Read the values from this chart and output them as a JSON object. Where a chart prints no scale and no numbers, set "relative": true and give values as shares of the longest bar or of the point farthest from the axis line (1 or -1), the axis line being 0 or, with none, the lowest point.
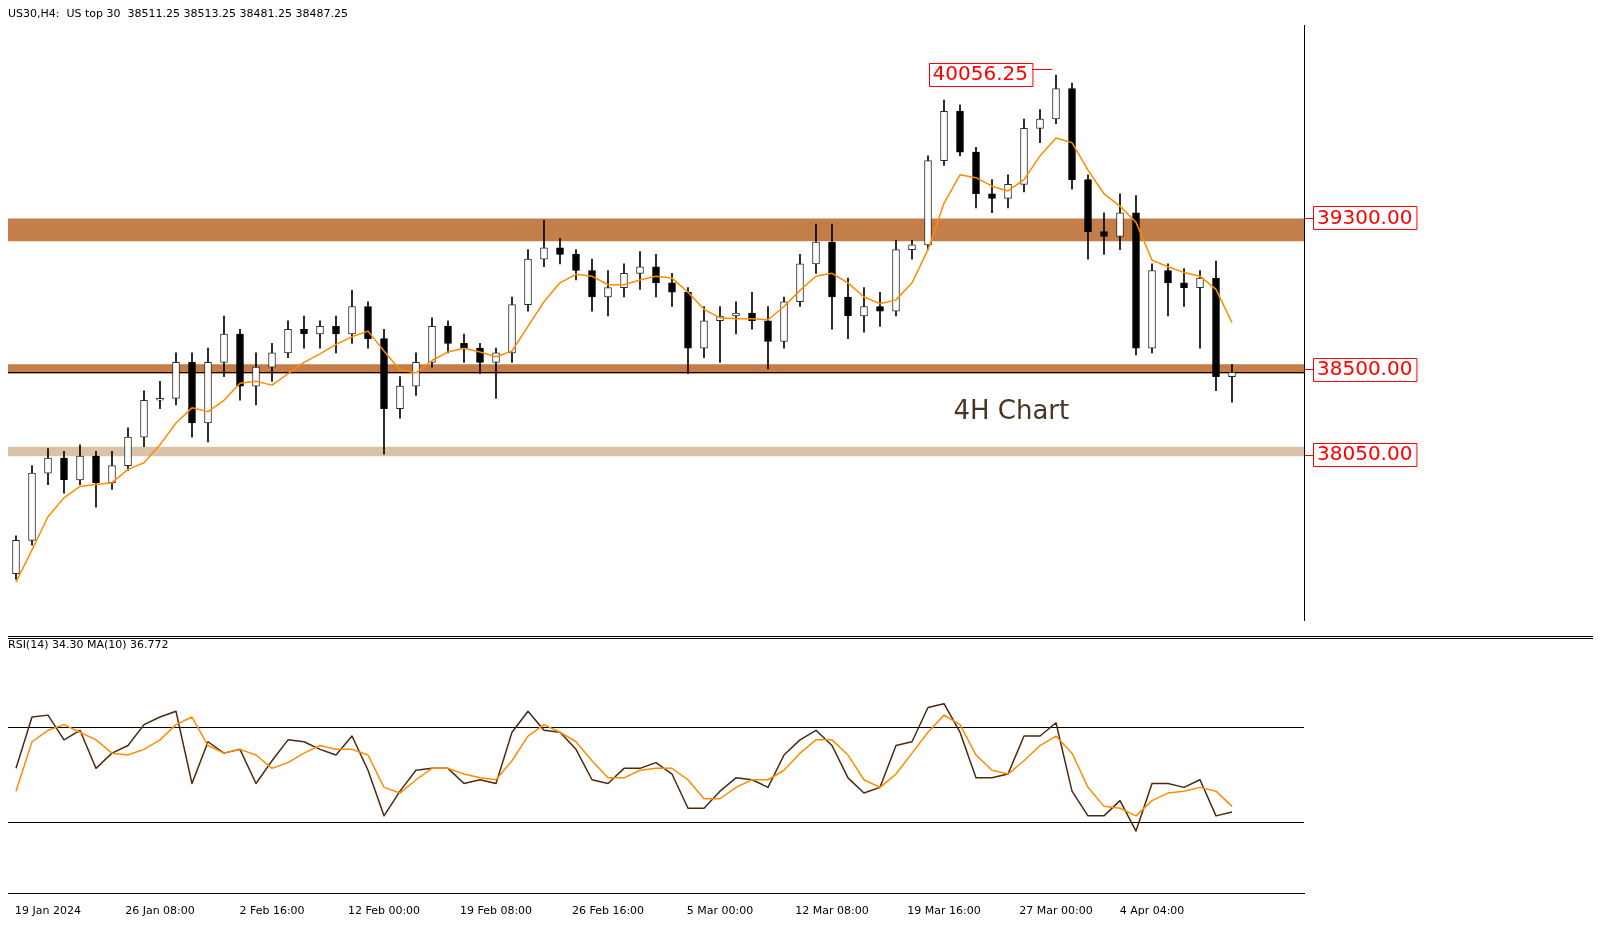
{
  "chart_data": [
    {
      "type": "candlestick",
      "title": "US30,H4:  US top 30  38511.25 38513.25 38481.25 38487.25",
      "categories": [
        null,
        null,
        null,
        null,
        null,
        null,
        null,
        null,
        null,
        null,
        null,
        null,
        null,
        null,
        null,
        null,
        null,
        null,
        null,
        null,
        null,
        null,
        null,
        null,
        null,
        null,
        null,
        null,
        null,
        null,
        null,
        null,
        null,
        null,
        null,
        null,
        null,
        null,
        null,
        null,
        null,
        null,
        null,
        null,
        null,
        null,
        null,
        null,
        null,
        null,
        null,
        null,
        null,
        null,
        null,
        null,
        null,
        null,
        null,
        null,
        null,
        null,
        null,
        null,
        null,
        null,
        null,
        null,
        null,
        null,
        null,
        null,
        null,
        null,
        null,
        null,
        null,
        null,
        null,
        null,
        null
      ],
      "ohlc": [
        [
          37425,
          37625,
          37395,
          37600
        ],
        [
          37600,
          37995,
          37575,
          37955
        ],
        [
          37955,
          38085,
          37895,
          38035
        ],
        [
          38035,
          38070,
          37850,
          37920
        ],
        [
          37920,
          38105,
          37895,
          38045
        ],
        [
          38045,
          38070,
          37775,
          37905
        ],
        [
          37905,
          38070,
          37870,
          37995
        ],
        [
          37995,
          38195,
          37970,
          38145
        ],
        [
          38145,
          38390,
          38095,
          38340
        ],
        [
          38340,
          38440,
          38295,
          38350
        ],
        [
          38350,
          38590,
          38315,
          38540
        ],
        [
          38540,
          38590,
          38145,
          38220
        ],
        [
          38220,
          38615,
          38120,
          38540
        ],
        [
          38540,
          38785,
          38465,
          38690
        ],
        [
          38690,
          38715,
          38340,
          38415
        ],
        [
          38415,
          38590,
          38315,
          38515
        ],
        [
          38515,
          38640,
          38440,
          38590
        ],
        [
          38590,
          38760,
          38565,
          38715
        ],
        [
          38715,
          38785,
          38615,
          38690
        ],
        [
          38690,
          38760,
          38615,
          38730
        ],
        [
          38730,
          38785,
          38590,
          38690
        ],
        [
          38690,
          38920,
          38640,
          38835
        ],
        [
          38835,
          38860,
          38615,
          38665
        ],
        [
          38665,
          38715,
          38055,
          38295
        ],
        [
          38295,
          38465,
          38245,
          38415
        ],
        [
          38415,
          38590,
          38365,
          38540
        ],
        [
          38540,
          38775,
          38515,
          38730
        ],
        [
          38730,
          38760,
          38590,
          38640
        ],
        [
          38640,
          38690,
          38540,
          38615
        ],
        [
          38615,
          38640,
          38480,
          38540
        ],
        [
          38540,
          38615,
          38350,
          38590
        ],
        [
          38590,
          38885,
          38540,
          38845
        ],
        [
          38845,
          39135,
          38810,
          39085
        ],
        [
          39085,
          39290,
          39045,
          39145
        ],
        [
          39145,
          39195,
          39060,
          39110
        ],
        [
          39110,
          39135,
          38975,
          39025
        ],
        [
          39025,
          39085,
          38810,
          38885
        ],
        [
          38885,
          39025,
          38785,
          38935
        ],
        [
          38935,
          39060,
          38885,
          39010
        ],
        [
          39010,
          39125,
          38925,
          39045
        ],
        [
          39045,
          39110,
          38885,
          38960
        ],
        [
          38960,
          39010,
          38835,
          38910
        ],
        [
          38910,
          38935,
          38480,
          38615
        ],
        [
          38615,
          38835,
          38565,
          38760
        ],
        [
          38760,
          38835,
          38540,
          38785
        ],
        [
          38785,
          38860,
          38690,
          38800
        ],
        [
          38800,
          38910,
          38715,
          38760
        ],
        [
          38760,
          38835,
          38505,
          38650
        ],
        [
          38650,
          38885,
          38615,
          38860
        ],
        [
          38860,
          39110,
          38835,
          39060
        ],
        [
          39060,
          39270,
          39010,
          39175
        ],
        [
          39175,
          39270,
          38715,
          38885
        ],
        [
          38885,
          38985,
          38665,
          38785
        ],
        [
          38785,
          38935,
          38700,
          38835
        ],
        [
          38835,
          38910,
          38730,
          38810
        ],
        [
          38810,
          39185,
          38785,
          39135
        ],
        [
          39135,
          39185,
          39085,
          39160
        ],
        [
          39160,
          39630,
          39135,
          39605
        ],
        [
          39605,
          39925,
          39580,
          39865
        ],
        [
          39865,
          39900,
          39630,
          39650
        ],
        [
          39650,
          39675,
          39355,
          39430
        ],
        [
          39430,
          39505,
          39330,
          39405
        ],
        [
          39405,
          39530,
          39355,
          39480
        ],
        [
          39480,
          39825,
          39440,
          39775
        ],
        [
          39775,
          39875,
          39700,
          39825
        ],
        [
          39825,
          40056.25,
          39800,
          39985
        ],
        [
          39985,
          40015,
          39455,
          39505
        ],
        [
          39505,
          39530,
          39085,
          39230
        ],
        [
          39230,
          39330,
          39110,
          39205
        ],
        [
          39205,
          39430,
          39135,
          39330
        ],
        [
          39330,
          39420,
          38580,
          38615
        ],
        [
          38615,
          39060,
          38590,
          39025
        ],
        [
          39025,
          39060,
          38785,
          38960
        ],
        [
          38960,
          39035,
          38835,
          38935
        ],
        [
          38935,
          39025,
          38615,
          38985
        ],
        [
          38985,
          39075,
          38390,
          38465
        ],
        [
          38465,
          38530,
          38330,
          38487.25
        ],
        null,
        null,
        null,
        null
      ],
      "series": [
        {
          "type": "line",
          "color": "#ff8c00",
          "values": [
            37380,
            37550,
            37725,
            37825,
            37885,
            37895,
            37905,
            37975,
            38010,
            38105,
            38220,
            38300,
            38280,
            38340,
            38430,
            38440,
            38420,
            38480,
            38540,
            38585,
            38635,
            38675,
            38705,
            38600,
            38500,
            38485,
            38550,
            38595,
            38615,
            38595,
            38570,
            38600,
            38730,
            38860,
            38960,
            39005,
            38995,
            38950,
            38950,
            38975,
            38995,
            38985,
            38910,
            38820,
            38775,
            38770,
            38770,
            38765,
            38835,
            38920,
            38995,
            39010,
            38960,
            38885,
            38850,
            38870,
            38960,
            39135,
            39380,
            39530,
            39515,
            39470,
            39445,
            39505,
            39630,
            39725,
            39700,
            39555,
            39430,
            39365,
            39280,
            39080,
            39045,
            39015,
            38995,
            38925,
            38750,
            null,
            null,
            null,
            null
          ]
        }
      ],
      "yticks": [
        {
          "value": 38050,
          "label": "38050.00"
        },
        {
          "value": 38500,
          "label": "38500.00"
        },
        {
          "value": 39300,
          "label": "39300.00"
        }
      ],
      "ylim": [
        37180,
        40320
      ],
      "tick_labels": "y",
      "grid": false,
      "legend": false,
      "bands": [
        {
          "axis": "y",
          "from": 39180,
          "to": 39300,
          "color": "#c47e4a"
        },
        {
          "axis": "y",
          "from": 38480,
          "to": 38530,
          "color": "#c47e4a"
        },
        {
          "axis": "y",
          "from": 38045,
          "to": 38095,
          "color": "#d9c2a8"
        }
      ],
      "ref_lines": [
        {
          "axis": "y",
          "value": 38487.25,
          "color": "#000000"
        }
      ],
      "annotations": [
        "40056.25",
        "4H Chart"
      ]
    },
    {
      "type": "line",
      "title": "RSI(14) 34.30 MA(10) 36.772",
      "relative": true,
      "categories": [
        null,
        null,
        "19 Jan 2024",
        null,
        null,
        null,
        null,
        null,
        null,
        "26 Jan 08:00",
        null,
        null,
        null,
        null,
        null,
        null,
        "2 Feb 16:00",
        null,
        null,
        null,
        null,
        null,
        null,
        "12 Feb 00:00",
        null,
        null,
        null,
        null,
        null,
        null,
        "19 Feb 08:00",
        null,
        null,
        null,
        null,
        null,
        null,
        "26 Feb 16:00",
        null,
        null,
        null,
        null,
        null,
        null,
        "5 Mar 00:00",
        null,
        null,
        null,
        null,
        null,
        null,
        "12 Mar 08:00",
        null,
        null,
        null,
        null,
        null,
        null,
        "19 Mar 16:00",
        null,
        null,
        null,
        null,
        null,
        null,
        "27 Mar 00:00",
        null,
        null,
        null,
        null,
        null,
        "4 Apr 04:00",
        null,
        null,
        null,
        null,
        null,
        null,
        null,
        null,
        null
      ],
      "series": [
        {
          "color": "#4b2a12",
          "values": [
            0.66,
            0.93,
            0.94,
            0.81,
            0.86,
            0.66,
            0.74,
            0.78,
            0.89,
            0.93,
            0.96,
            0.58,
            0.8,
            0.74,
            0.76,
            0.58,
            0.7,
            0.81,
            0.8,
            0.76,
            0.73,
            0.83,
            0.65,
            0.41,
            0.54,
            0.65,
            0.66,
            0.66,
            0.58,
            0.6,
            0.58,
            0.85,
            0.96,
            0.86,
            0.85,
            0.76,
            0.6,
            0.58,
            0.66,
            0.66,
            0.69,
            0.63,
            0.45,
            0.45,
            0.54,
            0.61,
            0.6,
            0.56,
            0.73,
            0.81,
            0.86,
            0.78,
            0.61,
            0.53,
            0.56,
            0.78,
            0.8,
            0.98,
            1,
            0.85,
            0.61,
            0.61,
            0.63,
            0.83,
            0.83,
            0.9,
            0.54,
            0.41,
            0.41,
            0.49,
            0.33,
            0.58,
            0.58,
            0.56,
            0.6,
            0.41,
            0.43,
            null,
            null,
            null,
            null
          ]
        },
        {
          "color": "#ff8c00",
          "values": [
            0.54,
            0.8,
            0.86,
            0.89,
            0.85,
            0.81,
            0.74,
            0.73,
            0.76,
            0.81,
            0.89,
            0.93,
            0.78,
            0.74,
            0.76,
            0.73,
            0.66,
            0.69,
            0.74,
            0.78,
            0.76,
            0.76,
            0.73,
            0.56,
            0.53,
            0.6,
            0.66,
            0.66,
            0.63,
            0.61,
            0.6,
            0.7,
            0.83,
            0.89,
            0.85,
            0.8,
            0.7,
            0.61,
            0.61,
            0.65,
            0.66,
            0.66,
            0.6,
            0.5,
            0.5,
            0.56,
            0.6,
            0.6,
            0.65,
            0.74,
            0.81,
            0.81,
            0.73,
            0.6,
            0.56,
            0.63,
            0.74,
            0.85,
            0.94,
            0.89,
            0.73,
            0.65,
            0.63,
            0.7,
            0.78,
            0.83,
            0.74,
            0.56,
            0.46,
            0.45,
            0.41,
            0.49,
            0.53,
            0.54,
            0.56,
            0.54,
            0.46,
            null,
            null,
            null,
            null
          ]
        }
      ],
      "tick_labels": "x",
      "grid": false,
      "legend": false,
      "ref_lines": [
        {
          "axis": "y",
          "value": 0.88,
          "color": "#000000"
        },
        {
          "axis": "y",
          "value": 0.38,
          "color": "#000000"
        }
      ]
    }
  ]
}
